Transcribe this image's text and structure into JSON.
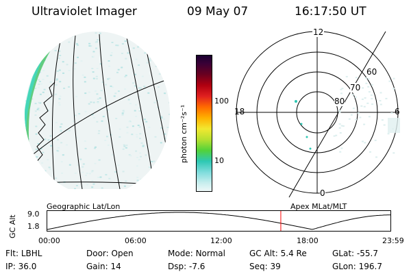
{
  "header": {
    "instrument": "Ultraviolet Imager",
    "date": "09 May 07",
    "time": "16:17:50 UT"
  },
  "colorbar": {
    "label": "photon cm⁻²s⁻¹",
    "ticks": [
      "100",
      "10"
    ]
  },
  "polar_plot": {
    "mlt_labels": {
      "top": "12",
      "left": "18",
      "right": "6",
      "bottom": "0"
    },
    "lat_labels": [
      "60",
      "70",
      "80"
    ]
  },
  "timeline": {
    "axis_label": "GC Alt",
    "yticks": [
      "9.0",
      "1.8"
    ],
    "left_caption": "Geographic Lat/Lon",
    "right_caption": "Apex MLat/MLT",
    "xticks": [
      "00:00",
      "06:00",
      "12:00",
      "18:00",
      "23:59"
    ],
    "current_marker_hour": 16.3,
    "marker_color": "#ff0000"
  },
  "status": {
    "flt_label": "Flt:",
    "flt_value": "LBHL",
    "ip_label": "IP:",
    "ip_value": "36.0",
    "door_label": "Door:",
    "door_value": "Open",
    "gain_label": "Gain:",
    "gain_value": "14",
    "mode_label": "Mode:",
    "mode_value": "Normal",
    "dsp_label": "Dsp:",
    "dsp_value": "-7.6",
    "gcalt_label": "GC Alt:",
    "gcalt_value": "5.4 Re",
    "seq_label": "Seq:",
    "seq_value": "39",
    "glat_label": "GLat:",
    "glat_value": "-55.7",
    "glon_label": "GLon:",
    "glon_value": "196.7"
  }
}
